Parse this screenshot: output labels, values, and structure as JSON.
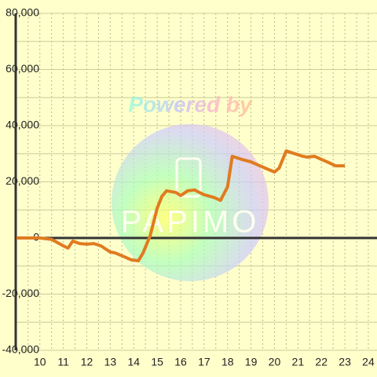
{
  "chart_data": {
    "type": "line",
    "watermark": {
      "text": "Powered by",
      "logo": "PAPIMO"
    },
    "x": [
      9.0,
      10,
      10.5,
      11,
      11.2,
      11.4,
      11.7,
      12,
      12.3,
      12.6,
      13,
      13.2,
      13.6,
      13.9,
      14.2,
      14.4,
      14.7,
      15,
      15.2,
      15.4,
      15.8,
      16,
      16.3,
      16.6,
      16.8,
      17,
      17.4,
      17.7,
      18,
      18.2,
      18.6,
      19,
      19.3,
      19.6,
      20,
      20.2,
      20.5,
      20.8,
      21.2,
      21.4,
      21.7,
      22,
      22.3,
      22.6,
      23
    ],
    "values": [
      0,
      0,
      -500,
      -2800,
      -3600,
      -1100,
      -2000,
      -2200,
      -2000,
      -2800,
      -5000,
      -5300,
      -6700,
      -7800,
      -8100,
      -5300,
      800,
      10600,
      14800,
      16800,
      16200,
      15100,
      16800,
      17100,
      16200,
      15400,
      14500,
      13400,
      18200,
      29100,
      28000,
      27100,
      26000,
      24900,
      23500,
      24900,
      31000,
      30200,
      29100,
      28800,
      29100,
      28000,
      26900,
      25700,
      25700
    ],
    "color": "#e07b20",
    "xlim": [
      8.97,
      24.37
    ],
    "ylim": [
      -40000,
      80000
    ],
    "xticks": [
      10,
      11,
      12,
      13,
      14,
      15,
      16,
      17,
      18,
      19,
      20,
      21,
      22,
      23,
      24
    ],
    "x_minor_ticks": [
      9.5,
      10.5,
      11.5,
      12.5,
      13.5,
      14.5,
      15.5,
      16.5,
      17.5,
      18.5,
      19.5,
      20.5,
      21.5,
      22.5,
      23.5
    ],
    "yticks": [
      {
        "value": -40000,
        "label": "-40,000"
      },
      {
        "value": -20000,
        "label": "-20,000"
      },
      0,
      {
        "value": 20000,
        "label": "20,000"
      },
      {
        "value": 40000,
        "label": "40,000"
      },
      {
        "value": 60000,
        "label": "60,000"
      },
      {
        "value": 80000,
        "label": "80,000"
      }
    ],
    "y_minor_ticks": [
      -30000,
      -10000,
      10000,
      30000,
      50000,
      70000
    ],
    "grid": true
  }
}
